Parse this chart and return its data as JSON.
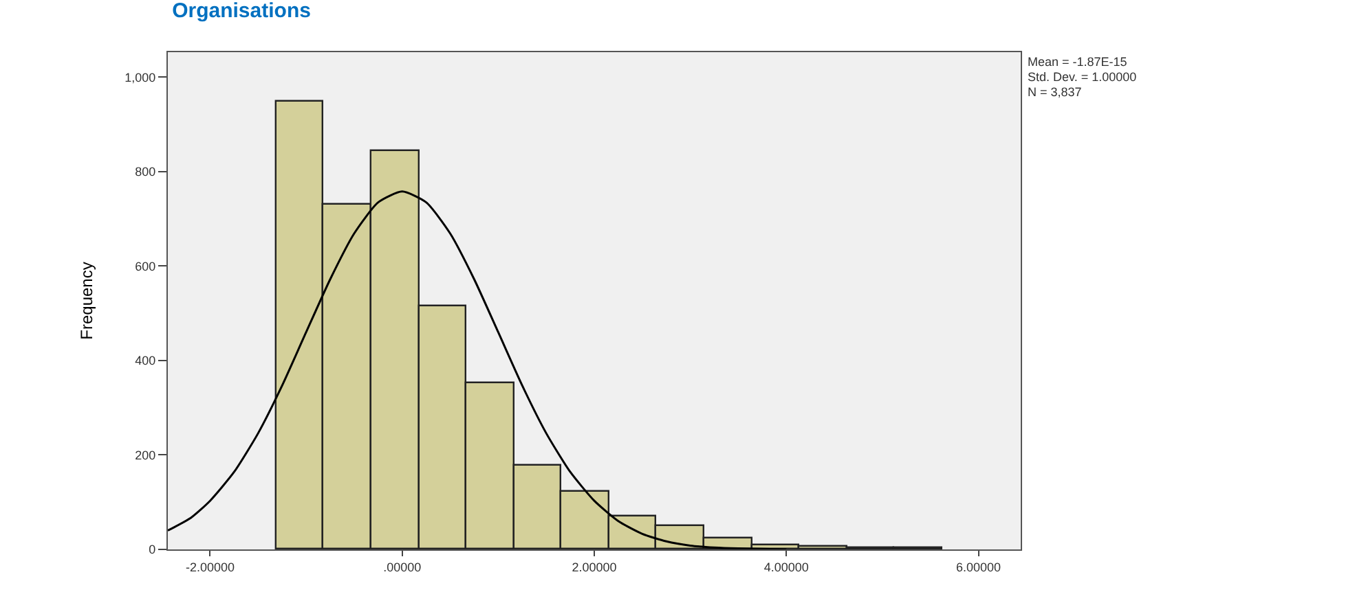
{
  "chart_data": {
    "type": "histogram",
    "title": "Organisations",
    "ylabel": "Frequency",
    "bins": [
      -1.31,
      -0.815,
      -0.32,
      0.175,
      0.67,
      1.165,
      1.66,
      2.155,
      2.65,
      3.145,
      3.64,
      4.135,
      4.63,
      5.125,
      5.62
    ],
    "values": [
      947,
      731,
      845,
      515,
      352,
      178,
      122,
      71,
      49,
      22,
      8,
      5,
      3,
      2
    ],
    "color": "#d4d09a",
    "series": [
      {
        "type": "line",
        "color": "#000000",
        "x": [
          -2.44,
          -2.2,
          -2,
          -1.75,
          -1.5,
          -1.25,
          -1,
          -0.75,
          -0.5,
          -0.25,
          0,
          0.25,
          0.5,
          0.75,
          1,
          1.25,
          1.5,
          1.75,
          2,
          2.25,
          2.5,
          2.75,
          3,
          3.25,
          3.5,
          4
        ],
        "values": [
          40,
          67,
          103,
          164,
          246,
          347,
          460,
          572,
          669,
          735,
          758,
          735,
          669,
          572,
          460,
          347,
          246,
          164,
          103,
          60,
          33,
          17,
          8,
          4,
          2,
          0
        ]
      }
    ],
    "xlim": [
      -2.44,
      6.44
    ],
    "ylim": [
      0,
      1053
    ],
    "xticks": [
      {
        "value": -2,
        "label": "-2.00000"
      },
      {
        "value": 0,
        "label": ".00000"
      },
      {
        "value": 2,
        "label": "2.00000"
      },
      {
        "value": 4,
        "label": "4.00000"
      },
      {
        "value": 6,
        "label": "6.00000"
      }
    ],
    "yticks": [
      0,
      200,
      400,
      600,
      800,
      {
        "value": 1000,
        "label": "1,000"
      }
    ],
    "grid": false,
    "marker": "none",
    "line_style": "solid",
    "annotations": [
      "Mean = -1.87E-15",
      "Std. Dev. = 1.00000",
      "N = 3,837"
    ]
  }
}
